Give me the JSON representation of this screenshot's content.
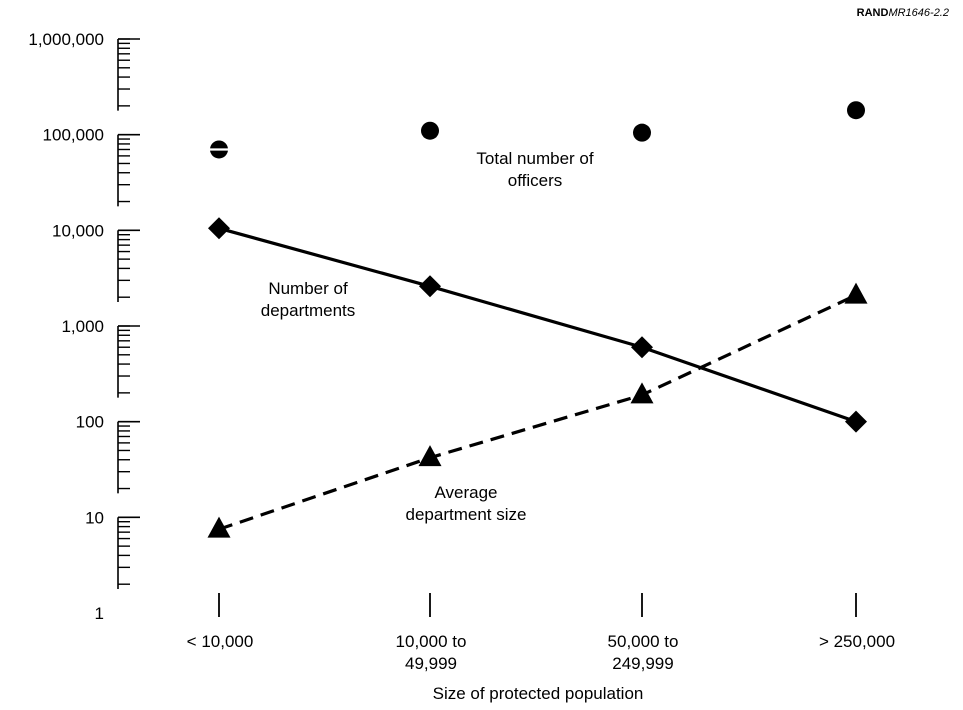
{
  "source_tag": {
    "prefix": "RAND",
    "id": "MR1646-2.2"
  },
  "chart_data": {
    "type": "line",
    "title": "",
    "xlabel": "Size of protected population",
    "ylabel": "",
    "y_scale": "log",
    "ylim": [
      1,
      1000000
    ],
    "y_tick_labels": [
      "1",
      "10",
      "100",
      "1,000",
      "10,000",
      "100,000",
      "1,000,000"
    ],
    "categories": [
      [
        "< 10,000"
      ],
      [
        "10,000 to",
        "49,999"
      ],
      [
        "50,000 to",
        "249,999"
      ],
      [
        "> 250,000"
      ]
    ],
    "grid": false,
    "legend": "none",
    "series": [
      {
        "label_lines": [
          "Total number of",
          "officers"
        ],
        "marker": "circle",
        "line": "none",
        "values": [
          70000,
          110000,
          105000,
          180000
        ]
      },
      {
        "label_lines": [
          "Number of",
          "departments"
        ],
        "marker": "diamond",
        "line": "solid",
        "values": [
          10500,
          2600,
          600,
          100
        ]
      },
      {
        "label_lines": [
          "Average",
          "department size"
        ],
        "marker": "triangle",
        "line": "dashed",
        "values": [
          7.5,
          42,
          190,
          2100
        ]
      }
    ]
  }
}
